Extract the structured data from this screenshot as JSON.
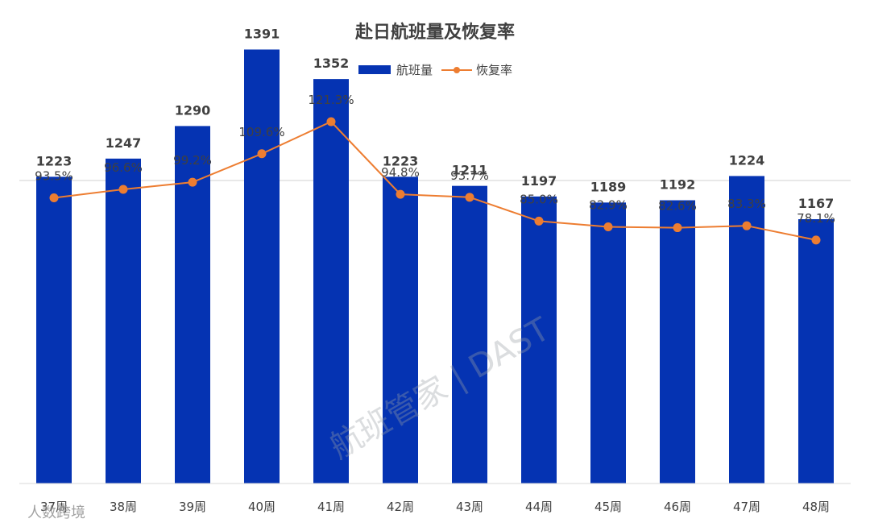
{
  "chart_data": {
    "type": "bar",
    "title": "赴日航班量及恢复率",
    "categories": [
      "37周",
      "38周",
      "39周",
      "40周",
      "41周",
      "42周",
      "43周",
      "44周",
      "45周",
      "46周",
      "47周",
      "48周"
    ],
    "series": [
      {
        "name": "航班量",
        "kind": "bar",
        "color": "#0533b2",
        "values": [
          1223,
          1247,
          1290,
          1391,
          1352,
          1223,
          1211,
          1197,
          1189,
          1192,
          1224,
          1167
        ],
        "labels": [
          "1223",
          "1247",
          "1290",
          "1391",
          "1352",
          "1223",
          "1211",
          "1197",
          "1189",
          "1192",
          "1224",
          "1167"
        ]
      },
      {
        "name": "恢复率",
        "kind": "line",
        "color": "#ed7d31",
        "unit": "%",
        "values": [
          93.5,
          96.6,
          99.2,
          109.6,
          121.3,
          94.8,
          93.7,
          85.0,
          82.9,
          82.6,
          83.3,
          78.1
        ],
        "labels": [
          "93.5%",
          "96.6%",
          "99.2%",
          "109.6%",
          "121.3%",
          "94.8%",
          "93.7%",
          "85.0%",
          "82.9%",
          "82.6%",
          "83.3%",
          "78.1%"
        ]
      }
    ],
    "legend": "top-center",
    "grid": false,
    "ylim_bar": [
      0,
      1600
    ],
    "ylim_line": [
      0,
      140
    ]
  },
  "watermark": {
    "text": "航班管家 | DAST"
  },
  "corner_mark": {
    "text": "人数跨境"
  }
}
